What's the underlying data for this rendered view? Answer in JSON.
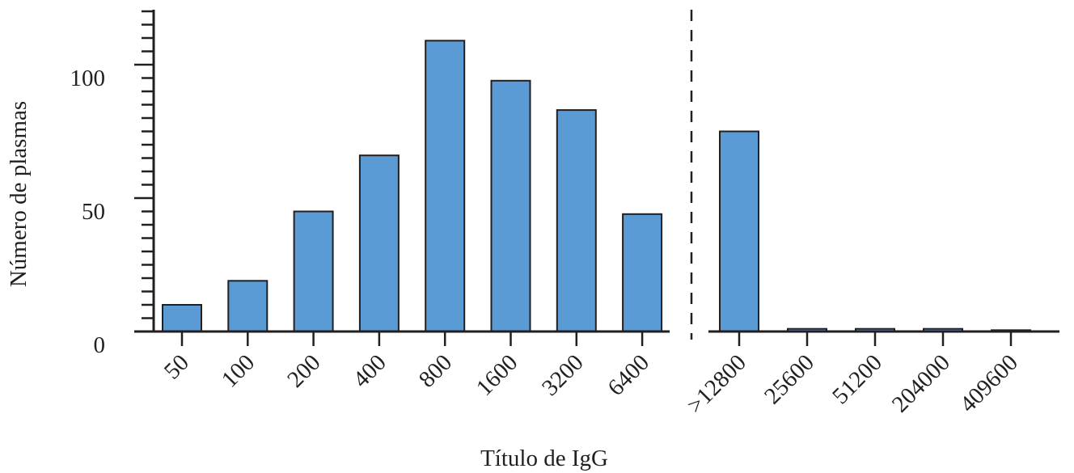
{
  "chart_data": {
    "type": "bar",
    "xlabel": "Título de IgG",
    "ylabel": "Número de plasmas",
    "ylim": [
      0,
      120
    ],
    "yticks": [
      0,
      50,
      100
    ],
    "minor_tick_step": 5,
    "grid": false,
    "groups": [
      {
        "categories": [
          "50",
          "100",
          "200",
          "400",
          "800",
          "1600",
          "3200",
          "6400"
        ],
        "values": [
          10,
          19,
          45,
          66,
          109,
          94,
          83,
          44
        ]
      },
      {
        "categories": [
          ">12800",
          "25600",
          "51200",
          "204000",
          "409600"
        ],
        "values": [
          75,
          1,
          1,
          1,
          0.5
        ]
      }
    ],
    "separator": "dashed vertical line between groups",
    "bar_color": "#5b9bd5",
    "bar_edge_color": "#231f20"
  }
}
